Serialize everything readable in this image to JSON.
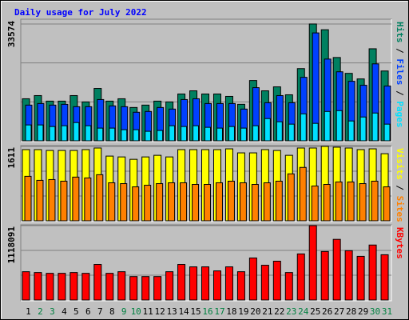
{
  "chart_data": {
    "type": "bar",
    "title": "Daily usage for July 2022",
    "categories": [
      "1",
      "2",
      "3",
      "4",
      "5",
      "6",
      "7",
      "8",
      "9",
      "10",
      "11",
      "12",
      "13",
      "14",
      "15",
      "16",
      "17",
      "18",
      "19",
      "20",
      "21",
      "22",
      "23",
      "24",
      "25",
      "26",
      "27",
      "28",
      "29",
      "30",
      "31"
    ],
    "category_colors": [
      "#000000",
      "#008040",
      "#008040",
      "#000000",
      "#000000",
      "#000000",
      "#000000",
      "#000000",
      "#008040",
      "#008040",
      "#000000",
      "#000000",
      "#000000",
      "#000000",
      "#000000",
      "#008040",
      "#008040",
      "#000000",
      "#000000",
      "#000000",
      "#000000",
      "#000000",
      "#008040",
      "#008040",
      "#000000",
      "#000000",
      "#000000",
      "#000000",
      "#000000",
      "#008040",
      "#008040"
    ],
    "legend_separator": " / ",
    "panels": [
      {
        "max_label": 33574,
        "ylim": [
          0,
          34944
        ],
        "series": [
          {
            "name": "Hits",
            "color": "#008060",
            "values": [
              12084,
              12996,
              11400,
              11400,
              12996,
              11172,
              15048,
              11400,
              12084,
              9576,
              10260,
              11400,
              11172,
              13452,
              14364,
              13452,
              13452,
              12768,
              10488,
              17328,
              14364,
              15504,
              13224,
              20748,
              33574,
              31920,
              23940,
              19380,
              17784,
              26448,
              20064
            ]
          },
          {
            "name": "Files",
            "color": "#0040ff",
            "values": [
              10260,
              10716,
              10260,
              10488,
              9804,
              9804,
              11856,
              10032,
              9804,
              8208,
              8436,
              9576,
              9120,
              11856,
              12084,
              10716,
              10716,
              10716,
              9120,
              15276,
              10944,
              12996,
              10944,
              18240,
              31008,
              23484,
              19836,
              17100,
              15960,
              22116,
              15732
            ]
          },
          {
            "name": "Pages",
            "color": "#00e0ff",
            "values": [
              4560,
              4560,
              4104,
              4332,
              5244,
              4332,
              3648,
              3648,
              3192,
              3192,
              2736,
              2964,
              4332,
              4104,
              4332,
              3876,
              3648,
              4104,
              3648,
              4332,
              6384,
              5472,
              4788,
              7752,
              5016,
              8436,
              8664,
              5700,
              6840,
              7980,
              4788
            ]
          }
        ]
      },
      {
        "max_label": 1611,
        "ylim": [
          0,
          1628
        ],
        "series": [
          {
            "name": "Visits",
            "color": "#ffff00",
            "values": [
              1541,
              1541,
              1523,
              1523,
              1523,
              1541,
              1576,
              1401,
              1383,
              1331,
              1383,
              1418,
              1383,
              1541,
              1541,
              1541,
              1541,
              1558,
              1471,
              1471,
              1541,
              1523,
              1418,
              1576,
              1576,
              1611,
              1594,
              1576,
              1541,
              1558,
              1453
            ]
          },
          {
            "name": "Sites",
            "color": "#ff8000",
            "values": [
              963,
              876,
              893,
              858,
              946,
              928,
              998,
              823,
              805,
              735,
              770,
              805,
              823,
              823,
              788,
              788,
              823,
              858,
              823,
              788,
              823,
              858,
              1016,
              1156,
              753,
              788,
              841,
              841,
              805,
              858,
              735
            ]
          }
        ]
      },
      {
        "max_label": 1118091,
        "ylim": [
          0,
          1130244
        ],
        "series": [
          {
            "name": "KBytes",
            "color": "#ff0000",
            "values": [
              425355,
              413202,
              401049,
              401049,
              413202,
              401049,
              534732,
              401049,
              425355,
              352437,
              352437,
              352437,
              425355,
              534732,
              498273,
              498273,
              437508,
              498273,
              425355,
              631956,
              522579,
              583344,
              413202,
              692721,
              1118091,
              729180,
              911475,
              741333,
              656262,
              826404,
              680568
            ]
          }
        ]
      }
    ]
  }
}
